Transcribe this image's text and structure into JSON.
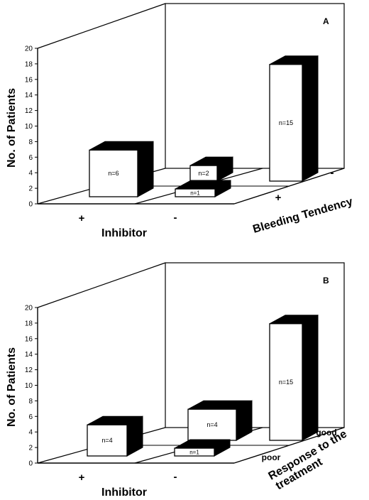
{
  "chart_data": [
    {
      "type": "bar",
      "panel_label": "A",
      "ylabel": "No. of Patients",
      "xlabel": "Inhibitor",
      "x_categories": [
        "+",
        "-"
      ],
      "depth_label": "Bleeding Tendency",
      "depth_categories": [
        "+",
        "-"
      ],
      "ylim": [
        0,
        20
      ],
      "yticks": [
        0,
        2,
        4,
        6,
        8,
        10,
        12,
        14,
        16,
        18,
        20
      ],
      "bars": [
        {
          "inhibitor": "+",
          "bleeding_tendency": "+",
          "value": 6,
          "label": "n=6"
        },
        {
          "inhibitor": "+",
          "bleeding_tendency": "-",
          "value": 2,
          "label": "n=2"
        },
        {
          "inhibitor": "-",
          "bleeding_tendency": "+",
          "value": 1,
          "label": "n=1"
        },
        {
          "inhibitor": "-",
          "bleeding_tendency": "-",
          "value": 15,
          "label": "n=15"
        }
      ]
    },
    {
      "type": "bar",
      "panel_label": "B",
      "ylabel": "No. of Patients",
      "xlabel": "Inhibitor",
      "x_categories": [
        "+",
        "-"
      ],
      "depth_label": "Response to the treatment",
      "depth_categories": [
        "poor",
        "good"
      ],
      "ylim": [
        0,
        20
      ],
      "yticks": [
        0,
        2,
        4,
        6,
        8,
        10,
        12,
        14,
        16,
        18,
        20
      ],
      "bars": [
        {
          "inhibitor": "+",
          "response": "poor",
          "value": 4,
          "label": "n=4"
        },
        {
          "inhibitor": "+",
          "response": "good",
          "value": 4,
          "label": "n=4"
        },
        {
          "inhibitor": "-",
          "response": "poor",
          "value": 1,
          "label": "n=1"
        },
        {
          "inhibitor": "-",
          "response": "good",
          "value": 15,
          "label": "n=15"
        }
      ]
    }
  ]
}
